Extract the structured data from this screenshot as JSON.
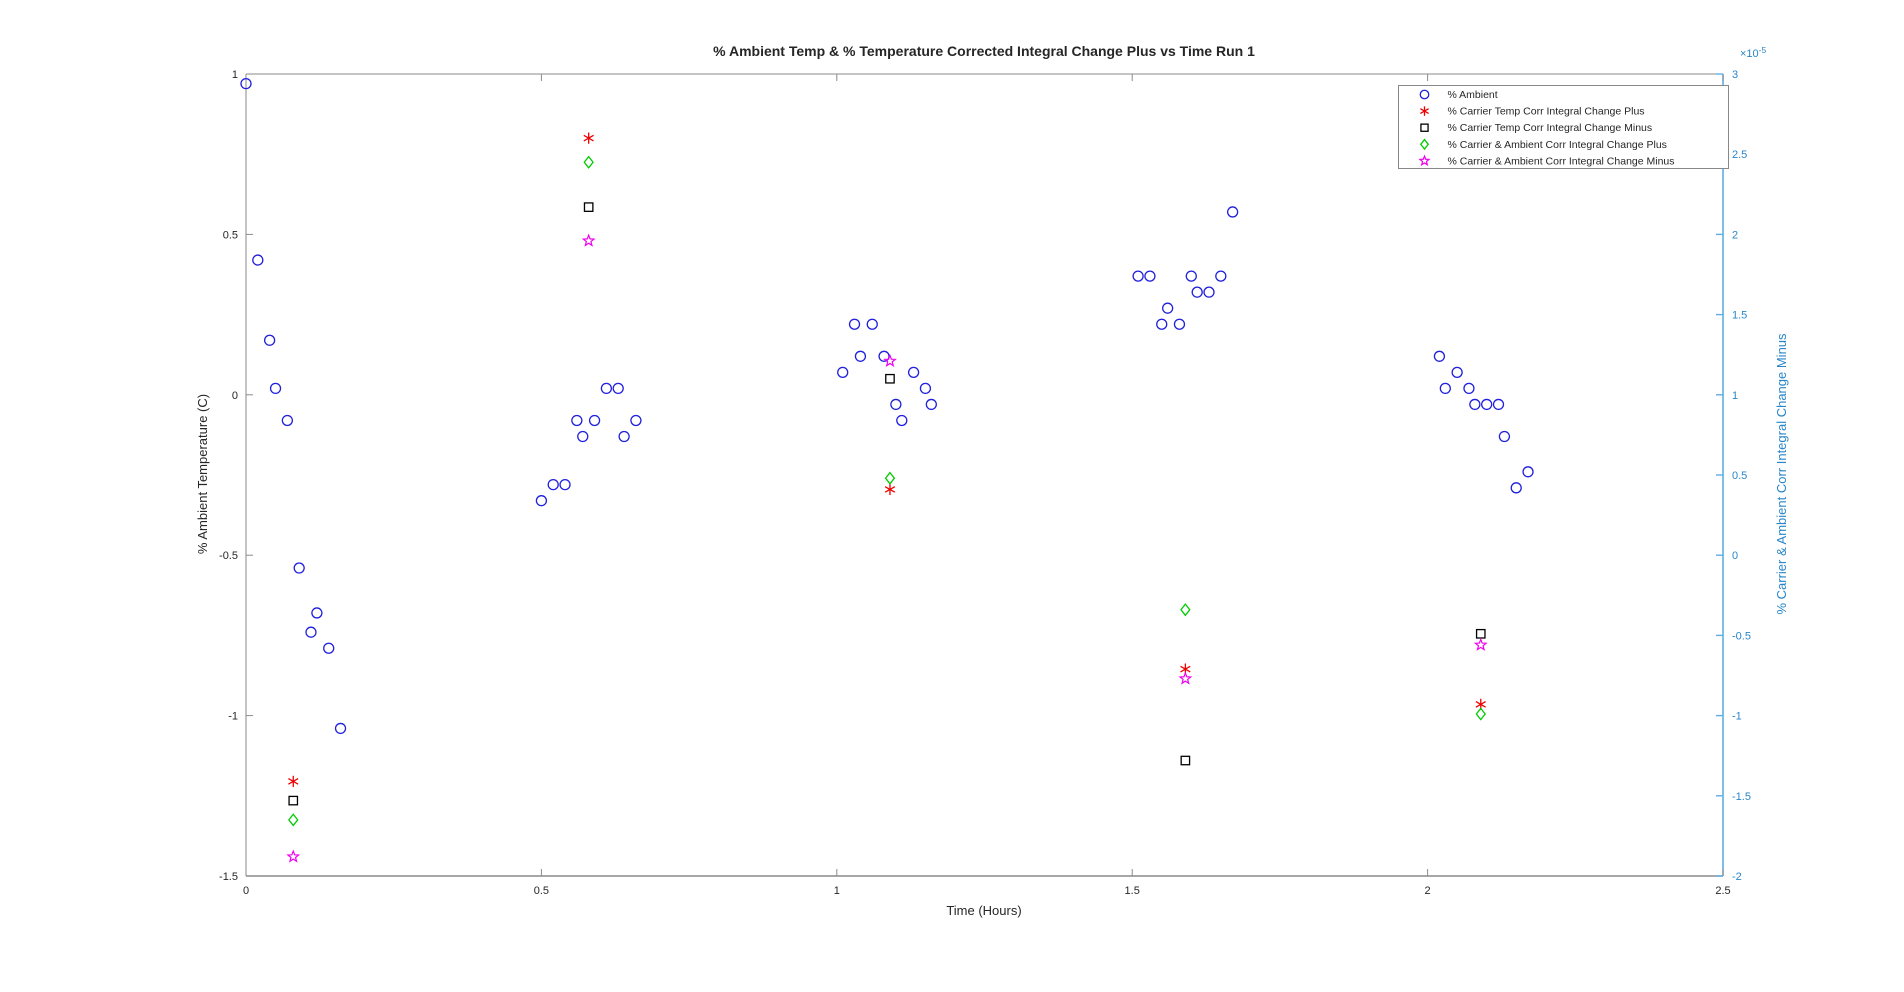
{
  "figure": {
    "title": "% Ambient Temp & % Temperature Corrected Integral Change Plus vs Time Run 1",
    "xlabel": "Time (Hours)",
    "ylabel_left": "% Ambient Temperature (C)",
    "ylabel_right": "% Carrier & Ambient Corr Integral Change Minus",
    "exp_base": "×10",
    "exp_power": "-5"
  },
  "colors": {
    "axis_gray": "#8a8a8a",
    "tick_text": "#262626",
    "right_axis_line": "#5faee3",
    "right_axis_text": "#2a86c8",
    "ambient": "#2020dd",
    "carrier_temp_plus": "#f00000",
    "carrier_temp_minus": "#000000",
    "carrier_ambient_plus": "#00cc00",
    "carrier_ambient_minus": "#f000f0",
    "legend_border": "#888888",
    "background": "#ffffff"
  },
  "chart_data": {
    "type": "scatter",
    "title": "% Ambient Temp & % Temperature Corrected Integral Change Plus vs Time Run 1",
    "xlabel": "Time (Hours)",
    "ylabel_left": "% Ambient Temperature (C)",
    "ylabel_right": "% Carrier & Ambient Corr Integral Change Minus",
    "grid": false,
    "legend_position": "top-right-inside",
    "xlim": [
      0,
      2.5
    ],
    "x_ticks": [
      0,
      0.5,
      1,
      1.5,
      2,
      2.5
    ],
    "ylim_left": [
      -1.5,
      1
    ],
    "y_ticks_left": [
      1,
      0.5,
      0,
      -0.5,
      -1,
      -1.5
    ],
    "ylim_right_e5": [
      -2,
      3
    ],
    "y_ticks_right_e5": [
      3,
      2.5,
      2,
      1.5,
      1,
      0.5,
      0,
      -0.5,
      -1,
      -1.5,
      -2
    ],
    "right_axis_multiplier": "1e-5",
    "series": [
      {
        "name": "% Ambient",
        "slug": "ambient",
        "marker": "circle",
        "color": "#2020dd",
        "axis": "left",
        "points": [
          [
            0.0,
            0.97
          ],
          [
            0.02,
            0.42
          ],
          [
            0.04,
            0.17
          ],
          [
            0.05,
            0.02
          ],
          [
            0.07,
            -0.08
          ],
          [
            0.09,
            -0.54
          ],
          [
            0.11,
            -0.74
          ],
          [
            0.12,
            -0.68
          ],
          [
            0.14,
            -0.79
          ],
          [
            0.16,
            -1.04
          ],
          [
            0.5,
            -0.33
          ],
          [
            0.52,
            -0.28
          ],
          [
            0.54,
            -0.28
          ],
          [
            0.56,
            -0.08
          ],
          [
            0.57,
            -0.13
          ],
          [
            0.59,
            -0.08
          ],
          [
            0.61,
            0.02
          ],
          [
            0.63,
            0.02
          ],
          [
            0.64,
            -0.13
          ],
          [
            0.66,
            -0.08
          ],
          [
            1.01,
            0.07
          ],
          [
            1.03,
            0.22
          ],
          [
            1.04,
            0.12
          ],
          [
            1.06,
            0.22
          ],
          [
            1.08,
            0.12
          ],
          [
            1.1,
            -0.03
          ],
          [
            1.11,
            -0.08
          ],
          [
            1.13,
            0.07
          ],
          [
            1.15,
            0.02
          ],
          [
            1.16,
            -0.03
          ],
          [
            1.51,
            0.37
          ],
          [
            1.53,
            0.37
          ],
          [
            1.55,
            0.22
          ],
          [
            1.56,
            0.27
          ],
          [
            1.58,
            0.22
          ],
          [
            1.6,
            0.37
          ],
          [
            1.61,
            0.32
          ],
          [
            1.63,
            0.32
          ],
          [
            1.65,
            0.37
          ],
          [
            1.67,
            0.57
          ],
          [
            2.02,
            0.12
          ],
          [
            2.03,
            0.02
          ],
          [
            2.05,
            0.07
          ],
          [
            2.07,
            0.02
          ],
          [
            2.08,
            -0.03
          ],
          [
            2.1,
            -0.03
          ],
          [
            2.12,
            -0.03
          ],
          [
            2.13,
            -0.13
          ],
          [
            2.15,
            -0.29
          ],
          [
            2.17,
            -0.24
          ]
        ]
      },
      {
        "name": "% Carrier Temp Corr Integral Change Plus",
        "slug": "carrier-temp-corr-plus",
        "marker": "asterisk",
        "color": "#f00000",
        "axis": "right",
        "unit": "1e-5",
        "points": [
          [
            0.08,
            -1.41
          ],
          [
            0.58,
            2.6
          ],
          [
            1.09,
            0.41
          ],
          [
            1.59,
            -0.71
          ],
          [
            2.09,
            -0.93
          ]
        ]
      },
      {
        "name": "% Carrier Temp Corr Integral Change Minus",
        "slug": "carrier-temp-corr-minus",
        "marker": "square",
        "color": "#000000",
        "axis": "right",
        "unit": "1e-5",
        "points": [
          [
            0.08,
            -1.53
          ],
          [
            0.58,
            2.17
          ],
          [
            1.09,
            1.1
          ],
          [
            1.59,
            -1.28
          ],
          [
            2.09,
            -0.49
          ]
        ]
      },
      {
        "name": "% Carrier & Ambient Corr Integral Change Plus",
        "slug": "carrier-ambient-corr-plus",
        "marker": "diamond",
        "color": "#00cc00",
        "axis": "right",
        "unit": "1e-5",
        "points": [
          [
            0.08,
            -1.65
          ],
          [
            0.58,
            2.45
          ],
          [
            1.09,
            0.48
          ],
          [
            1.59,
            -0.34
          ],
          [
            2.09,
            -0.99
          ]
        ]
      },
      {
        "name": "% Carrier & Ambient Corr Integral Change Minus",
        "slug": "carrier-ambient-corr-minus",
        "marker": "pentagram",
        "color": "#f000f0",
        "axis": "right",
        "unit": "1e-5",
        "points": [
          [
            0.08,
            -1.88
          ],
          [
            0.58,
            1.96
          ],
          [
            1.09,
            1.21
          ],
          [
            1.59,
            -0.77
          ],
          [
            2.09,
            -0.56
          ]
        ]
      }
    ]
  }
}
